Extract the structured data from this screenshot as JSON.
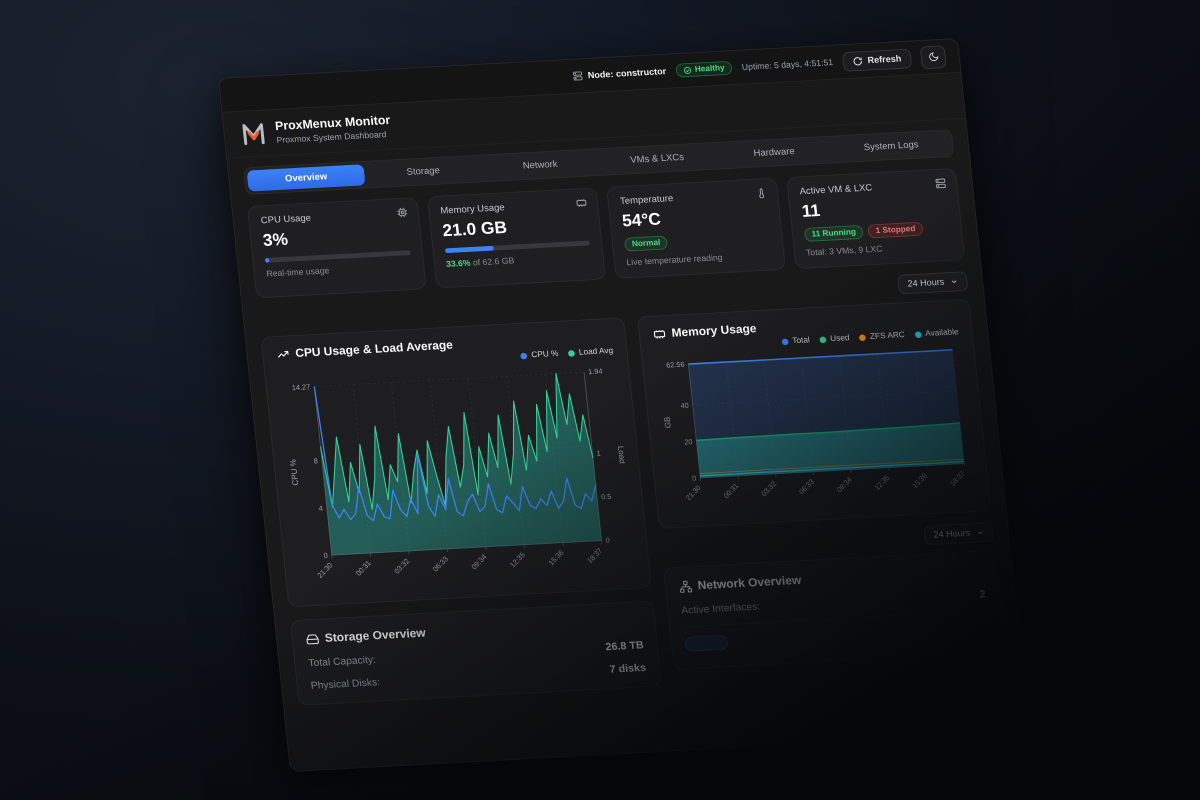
{
  "topbar": {
    "node": "Node: constructor",
    "health": "Healthy",
    "uptime": "Uptime: 5 days, 4:51:51",
    "refresh": "Refresh"
  },
  "header": {
    "title": "ProxMenux Monitor",
    "subtitle": "Proxmox System Dashboard"
  },
  "tabs": [
    {
      "label": "Overview",
      "active": true
    },
    {
      "label": "Storage"
    },
    {
      "label": "Network"
    },
    {
      "label": "VMs & LXCs"
    },
    {
      "label": "Hardware"
    },
    {
      "label": "System Logs"
    }
  ],
  "cards": {
    "cpu": {
      "title": "CPU Usage",
      "value": "3%",
      "percent": 3,
      "caption": "Real-time usage"
    },
    "memory": {
      "title": "Memory Usage",
      "value": "21.0 GB",
      "percent": 33.6,
      "caption_highlight": "33.6%",
      "caption_rest": " of 62.6 GB"
    },
    "temperature": {
      "title": "Temperature",
      "value": "54°C",
      "badge": "Normal",
      "caption": "Live temperature reading"
    },
    "vms": {
      "title": "Active VM & LXC",
      "value": "11",
      "running": "11 Running",
      "stopped": "1 Stopped",
      "caption": "Total: 3 VMs, 9 LXC"
    }
  },
  "time_range": {
    "selected": "24 Hours"
  },
  "storage": {
    "title": "Storage Overview",
    "rows": [
      {
        "label": "Total Capacity:",
        "value": "26.8 TB"
      },
      {
        "label": "Physical Disks:",
        "value": "7 disks"
      }
    ]
  },
  "network": {
    "title": "Network Overview",
    "rows": [
      {
        "label": "Active Interfaces:",
        "value": "2"
      }
    ]
  },
  "chart_data": [
    {
      "id": "cpu_load",
      "type": "area",
      "title": "CPU Usage & Load Average",
      "legend": [
        {
          "name": "CPU %",
          "color": "#3b82f6"
        },
        {
          "name": "Load Avg",
          "color": "#34d399"
        }
      ],
      "x_labels": [
        "21:30",
        "00:31",
        "03:32",
        "06:33",
        "09:34",
        "12:35",
        "15:36",
        "18:37"
      ],
      "left_axis": {
        "label": "CPU %",
        "max": 14.27,
        "ticks": [
          0,
          4,
          8,
          14.27
        ]
      },
      "right_axis": {
        "label": "Load",
        "max": 1.94,
        "ticks": [
          0,
          0.5,
          1,
          1.94
        ]
      },
      "series": [
        {
          "name": "Load Avg",
          "axis": "right",
          "color": "#34d399",
          "width": 1.3,
          "fill": "rgba(45,212,191,0.35)",
          "values": [
            1.25,
            0.55,
            0.95,
            1.35,
            0.6,
            1.05,
            0.7,
            1.25,
            0.5,
            0.85,
            1.45,
            0.6,
            1.0,
            0.8,
            1.35,
            0.55,
            0.9,
            1.15,
            0.65,
            1.25,
            0.85,
            0.5,
            1.05,
            1.4,
            0.7,
            0.95,
            1.55,
            0.6,
            1.15,
            0.8,
            1.3,
            0.9,
            1.5,
            0.7,
            1.05,
            1.65,
            0.85,
            1.25,
            0.95,
            1.6,
            1.05,
            1.75,
            1.2,
            1.94,
            1.35,
            1.7,
            1.15,
            1.45,
            0.95
          ]
        },
        {
          "name": "CPU %",
          "axis": "left",
          "color": "#3b82f6",
          "width": 1.6,
          "values": [
            14.27,
            4.2,
            3.1,
            3.8,
            2.9,
            3.4,
            5.6,
            3.2,
            2.7,
            4.1,
            3.0,
            2.8,
            5.2,
            3.5,
            2.9,
            4.4,
            3.1,
            8.1,
            3.7,
            2.8,
            4.6,
            3.3,
            5.9,
            3.1,
            2.7,
            3.9,
            4.5,
            3.0,
            3.4,
            5.3,
            3.1,
            2.8,
            4.2,
            3.6,
            2.9,
            4.9,
            3.3,
            3.0,
            3.8,
            3.2,
            4.4,
            2.9,
            3.5,
            5.4,
            3.1,
            2.8,
            4.0,
            3.4,
            4.7
          ]
        }
      ]
    },
    {
      "id": "memory",
      "type": "area",
      "title": "Memory Usage",
      "legend": [
        {
          "name": "Total",
          "color": "#3b82f6"
        },
        {
          "name": "Used",
          "color": "#34d399"
        },
        {
          "name": "ZFS ARC",
          "color": "#f59e0b"
        },
        {
          "name": "Available",
          "color": "#22d3ee"
        }
      ],
      "x_labels": [
        "21:30",
        "00:31",
        "03:32",
        "06:33",
        "09:34",
        "12:35",
        "15:36",
        "18:37"
      ],
      "left_axis": {
        "label": "GB",
        "max": 62.56,
        "ticks": [
          0,
          20,
          40,
          62.56
        ]
      },
      "series": [
        {
          "name": "Total",
          "axis": "left",
          "color": "#3b82f6",
          "width": 2,
          "fill": "rgba(59,130,246,0.22)",
          "values": [
            62.56,
            62.56,
            62.56,
            62.56,
            62.56,
            62.56,
            62.56,
            62.56,
            62.56
          ]
        },
        {
          "name": "Used",
          "axis": "left",
          "color": "#10b981",
          "width": 2,
          "fill": "rgba(45,212,191,0.42)",
          "values": [
            20.6,
            20.9,
            21.0,
            21.2,
            21.1,
            21.4,
            21.6,
            21.9,
            22.3
          ]
        },
        {
          "name": "ZFS ARC",
          "axis": "left",
          "color": "#f59e0b",
          "width": 1,
          "opacity": 0.7,
          "values": [
            2.4,
            2.4,
            2.5,
            2.4,
            2.5,
            2.5,
            2.4,
            2.5,
            2.5
          ]
        },
        {
          "name": "Available",
          "axis": "left",
          "color": "#22d3ee",
          "width": 1.6,
          "values": [
            1.1,
            1.1,
            1.2,
            1.1,
            1.2,
            1.1,
            1.2,
            1.1,
            1.2
          ]
        }
      ]
    }
  ]
}
